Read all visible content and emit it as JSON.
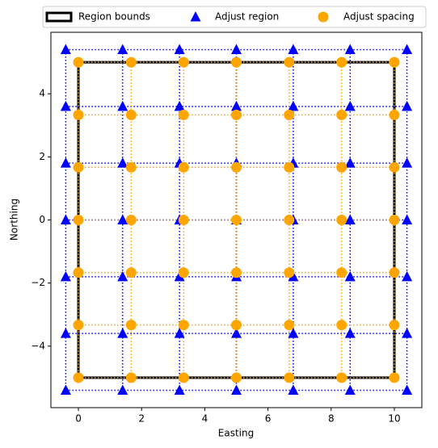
{
  "chart_data": {
    "type": "scatter",
    "x_label": "Easting",
    "y_label": "Northing",
    "xlim": [
      -0.87,
      10.87
    ],
    "ylim": [
      -5.95,
      5.95
    ],
    "xticks": [
      0,
      2,
      4,
      6,
      8,
      10
    ],
    "yticks": [
      {
        "value": -4,
        "label": "−4"
      },
      {
        "value": -2,
        "label": "−2"
      },
      0,
      2,
      4
    ],
    "legend": "top-outside",
    "series": [
      {
        "name": "Region bounds",
        "color": "#000000",
        "marker": "none",
        "linestyle": "solid",
        "x": [
          0,
          10,
          10,
          0,
          0
        ],
        "values": [
          -5,
          -5,
          5,
          5,
          -5
        ]
      },
      {
        "name": "Adjust region",
        "color": "#0000ff",
        "marker": "triangle",
        "linestyle": "dotted",
        "x": [
          -0.4,
          1.4,
          3.2,
          5,
          6.8,
          8.6,
          10.4,
          -0.4,
          1.4,
          3.2,
          5,
          6.8,
          8.6,
          10.4,
          -0.4,
          1.4,
          3.2,
          5,
          6.8,
          8.6,
          10.4,
          -0.4,
          1.4,
          3.2,
          5,
          6.8,
          8.6,
          10.4,
          -0.4,
          1.4,
          3.2,
          5,
          6.8,
          8.6,
          10.4,
          -0.4,
          1.4,
          3.2,
          5,
          6.8,
          8.6,
          10.4,
          -0.4,
          1.4,
          3.2,
          5,
          6.8,
          8.6,
          10.4
        ],
        "values": [
          -5.4,
          -5.4,
          -5.4,
          -5.4,
          -5.4,
          -5.4,
          -5.4,
          -3.6,
          -3.6,
          -3.6,
          -3.6,
          -3.6,
          -3.6,
          -3.6,
          -1.8,
          -1.8,
          -1.8,
          -1.8,
          -1.8,
          -1.8,
          -1.8,
          0,
          0,
          0,
          0,
          0,
          0,
          0,
          1.8,
          1.8,
          1.8,
          1.8,
          1.8,
          1.8,
          1.8,
          3.6,
          3.6,
          3.6,
          3.6,
          3.6,
          3.6,
          3.6,
          5.4,
          5.4,
          5.4,
          5.4,
          5.4,
          5.4,
          5.4
        ]
      },
      {
        "name": "Adjust spacing",
        "color": "#ffa500",
        "marker": "circle",
        "linestyle": "dotted",
        "x": [
          0,
          1.67,
          3.33,
          5,
          6.67,
          8.33,
          10,
          0,
          1.67,
          3.33,
          5,
          6.67,
          8.33,
          10,
          0,
          1.67,
          3.33,
          5,
          6.67,
          8.33,
          10,
          0,
          1.67,
          3.33,
          5,
          6.67,
          8.33,
          10,
          0,
          1.67,
          3.33,
          5,
          6.67,
          8.33,
          10,
          0,
          1.67,
          3.33,
          5,
          6.67,
          8.33,
          10,
          0,
          1.67,
          3.33,
          5,
          6.67,
          8.33,
          10
        ],
        "values": [
          -5,
          -5,
          -5,
          -5,
          -5,
          -5,
          -5,
          -3.33,
          -3.33,
          -3.33,
          -3.33,
          -3.33,
          -3.33,
          -3.33,
          -1.67,
          -1.67,
          -1.67,
          -1.67,
          -1.67,
          -1.67,
          -1.67,
          0,
          0,
          0,
          0,
          0,
          0,
          0,
          1.67,
          1.67,
          1.67,
          1.67,
          1.67,
          1.67,
          1.67,
          3.33,
          3.33,
          3.33,
          3.33,
          3.33,
          3.33,
          3.33,
          5,
          5,
          5,
          5,
          5,
          5,
          5
        ]
      }
    ]
  }
}
